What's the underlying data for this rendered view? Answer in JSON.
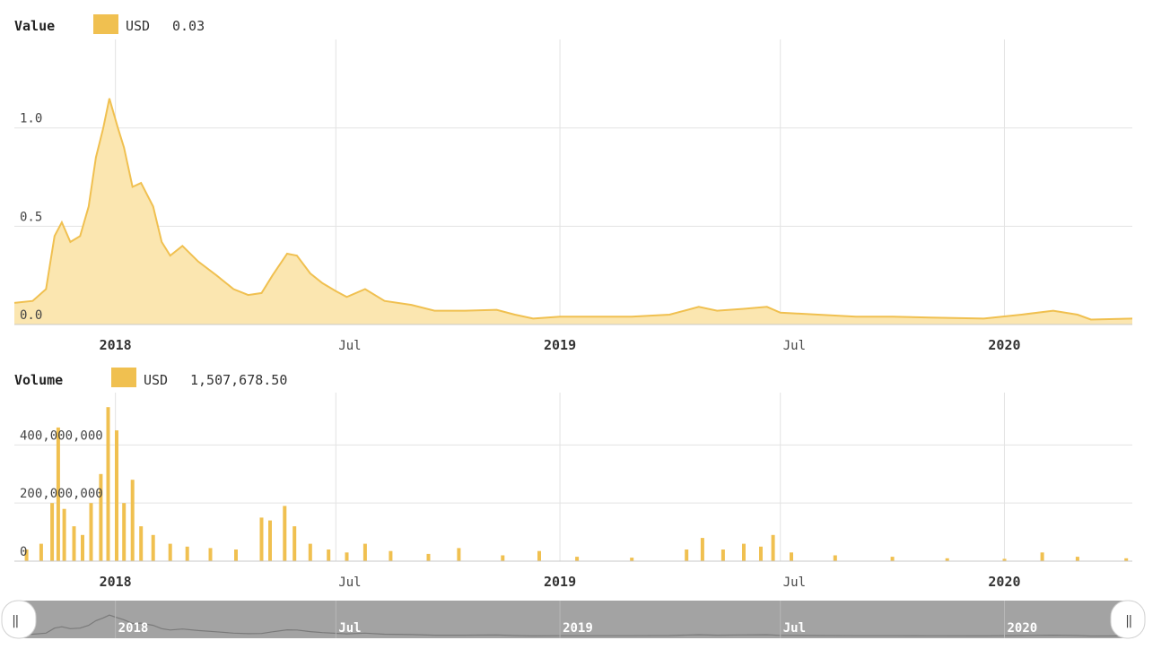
{
  "colors": {
    "series": "#f0c050",
    "series_fill": "#fbe6b0",
    "navigator_bg": "#a3a3a3",
    "navigator_line": "#7a7a7a"
  },
  "chart_data": [
    {
      "type": "area",
      "title": "Value",
      "legend": {
        "placement": "top-left",
        "label": "USD",
        "value": "0.03"
      },
      "x_ticks": [
        {
          "date": "2018-01-01",
          "label": "2018",
          "bold": true
        },
        {
          "date": "2018-07-01",
          "label": "Jul",
          "bold": false
        },
        {
          "date": "2019-01-01",
          "label": "2019",
          "bold": true
        },
        {
          "date": "2019-07-01",
          "label": "Jul",
          "bold": false
        },
        {
          "date": "2020-01-01",
          "label": "2020",
          "bold": true
        }
      ],
      "x_range": [
        "2017-10-10",
        "2020-04-15"
      ],
      "y_ticks": [
        0.0,
        0.5,
        1.0
      ],
      "y_tick_labels": [
        "0.0",
        "0.5",
        "1.0"
      ],
      "ylim": [
        0,
        1.45
      ],
      "grid": true,
      "points": [
        [
          "2017-10-10",
          0.11
        ],
        [
          "2017-10-25",
          0.12
        ],
        [
          "2017-11-05",
          0.18
        ],
        [
          "2017-11-12",
          0.45
        ],
        [
          "2017-11-18",
          0.52
        ],
        [
          "2017-11-25",
          0.42
        ],
        [
          "2017-12-03",
          0.45
        ],
        [
          "2017-12-10",
          0.6
        ],
        [
          "2017-12-16",
          0.85
        ],
        [
          "2017-12-22",
          1.0
        ],
        [
          "2017-12-27",
          1.15
        ],
        [
          "2018-01-03",
          1.0
        ],
        [
          "2018-01-08",
          0.9
        ],
        [
          "2018-01-15",
          0.7
        ],
        [
          "2018-01-22",
          0.72
        ],
        [
          "2018-02-01",
          0.6
        ],
        [
          "2018-02-08",
          0.42
        ],
        [
          "2018-02-15",
          0.35
        ],
        [
          "2018-02-25",
          0.4
        ],
        [
          "2018-03-10",
          0.32
        ],
        [
          "2018-03-25",
          0.25
        ],
        [
          "2018-04-08",
          0.18
        ],
        [
          "2018-04-20",
          0.15
        ],
        [
          "2018-05-01",
          0.16
        ],
        [
          "2018-05-10",
          0.25
        ],
        [
          "2018-05-22",
          0.36
        ],
        [
          "2018-05-30",
          0.35
        ],
        [
          "2018-06-10",
          0.26
        ],
        [
          "2018-06-20",
          0.21
        ],
        [
          "2018-07-01",
          0.17
        ],
        [
          "2018-07-10",
          0.14
        ],
        [
          "2018-07-25",
          0.18
        ],
        [
          "2018-08-10",
          0.12
        ],
        [
          "2018-09-01",
          0.1
        ],
        [
          "2018-09-20",
          0.07
        ],
        [
          "2018-10-15",
          0.07
        ],
        [
          "2018-11-10",
          0.075
        ],
        [
          "2018-11-25",
          0.05
        ],
        [
          "2018-12-10",
          0.03
        ],
        [
          "2019-01-01",
          0.04
        ],
        [
          "2019-02-01",
          0.04
        ],
        [
          "2019-03-01",
          0.04
        ],
        [
          "2019-04-01",
          0.05
        ],
        [
          "2019-04-25",
          0.09
        ],
        [
          "2019-05-10",
          0.07
        ],
        [
          "2019-06-01",
          0.08
        ],
        [
          "2019-06-20",
          0.09
        ],
        [
          "2019-07-01",
          0.06
        ],
        [
          "2019-08-01",
          0.05
        ],
        [
          "2019-09-01",
          0.04
        ],
        [
          "2019-10-01",
          0.04
        ],
        [
          "2019-11-01",
          0.035
        ],
        [
          "2019-12-15",
          0.03
        ],
        [
          "2020-01-15",
          0.05
        ],
        [
          "2020-02-10",
          0.07
        ],
        [
          "2020-03-01",
          0.05
        ],
        [
          "2020-03-12",
          0.025
        ],
        [
          "2020-04-15",
          0.03
        ]
      ]
    },
    {
      "type": "bar",
      "title": "Volume",
      "legend": {
        "placement": "top-left",
        "label": "USD",
        "value": "1,507,678.50"
      },
      "x_ticks": [
        {
          "date": "2018-01-01",
          "label": "2018",
          "bold": true
        },
        {
          "date": "2018-07-01",
          "label": "Jul",
          "bold": false
        },
        {
          "date": "2019-01-01",
          "label": "2019",
          "bold": true
        },
        {
          "date": "2019-07-01",
          "label": "Jul",
          "bold": false
        },
        {
          "date": "2020-01-01",
          "label": "2020",
          "bold": true
        }
      ],
      "x_range": [
        "2017-10-10",
        "2020-04-15"
      ],
      "y_ticks": [
        0,
        200000000,
        400000000
      ],
      "y_tick_labels": [
        "0",
        "200,000,000",
        "400,000,000"
      ],
      "ylim": [
        0,
        580000000
      ],
      "grid": true,
      "points": [
        [
          "2017-10-20",
          40000000
        ],
        [
          "2017-11-01",
          60000000
        ],
        [
          "2017-11-10",
          200000000
        ],
        [
          "2017-11-15",
          460000000
        ],
        [
          "2017-11-20",
          180000000
        ],
        [
          "2017-11-28",
          120000000
        ],
        [
          "2017-12-05",
          90000000
        ],
        [
          "2017-12-12",
          200000000
        ],
        [
          "2017-12-20",
          300000000
        ],
        [
          "2017-12-26",
          530000000
        ],
        [
          "2018-01-02",
          450000000
        ],
        [
          "2018-01-08",
          200000000
        ],
        [
          "2018-01-15",
          280000000
        ],
        [
          "2018-01-22",
          120000000
        ],
        [
          "2018-02-01",
          90000000
        ],
        [
          "2018-02-15",
          60000000
        ],
        [
          "2018-03-01",
          50000000
        ],
        [
          "2018-03-20",
          45000000
        ],
        [
          "2018-04-10",
          40000000
        ],
        [
          "2018-05-01",
          150000000
        ],
        [
          "2018-05-08",
          140000000
        ],
        [
          "2018-05-20",
          190000000
        ],
        [
          "2018-05-28",
          120000000
        ],
        [
          "2018-06-10",
          60000000
        ],
        [
          "2018-06-25",
          40000000
        ],
        [
          "2018-07-10",
          30000000
        ],
        [
          "2018-07-25",
          60000000
        ],
        [
          "2018-08-15",
          35000000
        ],
        [
          "2018-09-15",
          25000000
        ],
        [
          "2018-10-10",
          45000000
        ],
        [
          "2018-11-15",
          20000000
        ],
        [
          "2018-12-15",
          35000000
        ],
        [
          "2019-01-15",
          15000000
        ],
        [
          "2019-03-01",
          12000000
        ],
        [
          "2019-04-15",
          40000000
        ],
        [
          "2019-04-28",
          80000000
        ],
        [
          "2019-05-15",
          40000000
        ],
        [
          "2019-06-01",
          60000000
        ],
        [
          "2019-06-15",
          50000000
        ],
        [
          "2019-06-25",
          90000000
        ],
        [
          "2019-07-10",
          30000000
        ],
        [
          "2019-08-15",
          20000000
        ],
        [
          "2019-10-01",
          15000000
        ],
        [
          "2019-11-15",
          10000000
        ],
        [
          "2020-01-01",
          8000000
        ],
        [
          "2020-02-01",
          30000000
        ],
        [
          "2020-03-01",
          15000000
        ],
        [
          "2020-04-10",
          10000000
        ]
      ]
    }
  ],
  "navigator": {
    "labels": [
      "2018",
      "Jul",
      "2019",
      "Jul",
      "2020"
    ],
    "left_handle_glyph": "‖",
    "right_handle_glyph": "‖"
  }
}
